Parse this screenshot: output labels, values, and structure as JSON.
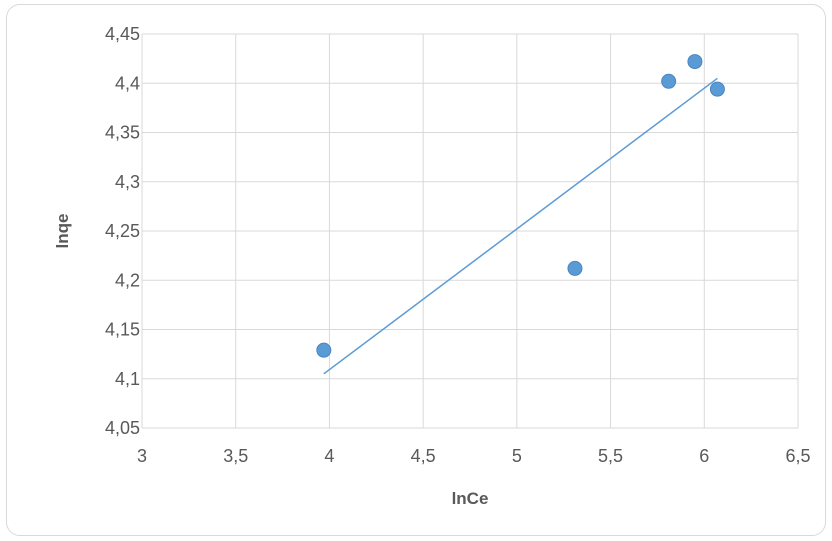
{
  "chart_data": {
    "type": "scatter",
    "xlabel": "lnCe",
    "ylabel": "lnqe",
    "xlim": [
      3,
      6.5
    ],
    "ylim": [
      4.05,
      4.45
    ],
    "x_ticks": [
      "3",
      "3,5",
      "4",
      "4,5",
      "5",
      "5,5",
      "6",
      "6,5"
    ],
    "y_ticks": [
      "4,05",
      "4,1",
      "4,15",
      "4,2",
      "4,25",
      "4,3",
      "4,35",
      "4,4",
      "4,45"
    ],
    "x_tick_values": [
      3,
      3.5,
      4,
      4.5,
      5,
      5.5,
      6,
      6.5
    ],
    "y_tick_values": [
      4.05,
      4.1,
      4.15,
      4.2,
      4.25,
      4.3,
      4.35,
      4.4,
      4.45
    ],
    "grid": true,
    "series": [
      {
        "points": [
          {
            "x": 3.97,
            "y": 4.129
          },
          {
            "x": 5.31,
            "y": 4.212
          },
          {
            "x": 5.81,
            "y": 4.402
          },
          {
            "x": 5.95,
            "y": 4.422
          },
          {
            "x": 6.07,
            "y": 4.394
          }
        ],
        "color": "#5b9bd5"
      }
    ],
    "trendline": {
      "type": "linear",
      "x_range": [
        3.97,
        6.07
      ],
      "y_range": [
        4.105,
        4.405
      ],
      "color": "#5b9bd5"
    }
  }
}
